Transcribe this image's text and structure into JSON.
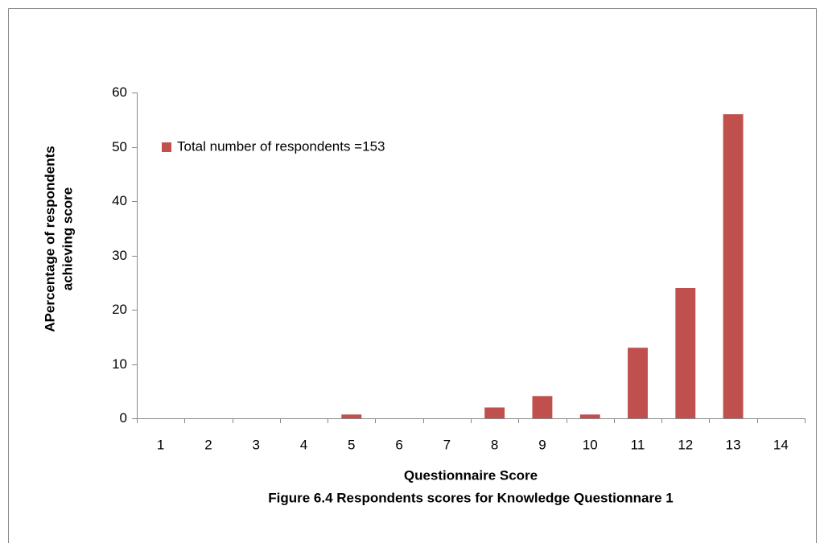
{
  "chart_data": {
    "type": "bar",
    "ylabel": [
      "APercentage of respondents",
      "achieving score"
    ],
    "xlabel": "Questionnaire Score",
    "caption": "Figure 6.4  Respondents scores for Knowledge Questionnare 1",
    "categories": [
      "1",
      "2",
      "3",
      "4",
      "5",
      "6",
      "7",
      "8",
      "9",
      "10",
      "11",
      "12",
      "13",
      "14"
    ],
    "series": [
      {
        "name": "Total number of respondents =153",
        "color": "#c0504d",
        "values": [
          0,
          0,
          0,
          0,
          0.7,
          0,
          0,
          2,
          4.1,
          0.7,
          13,
          24,
          56,
          0
        ]
      }
    ],
    "ylim": [
      0,
      60
    ],
    "yticks": [
      0,
      10,
      20,
      30,
      40,
      50,
      60
    ],
    "grid": false,
    "legend": "upper left"
  }
}
